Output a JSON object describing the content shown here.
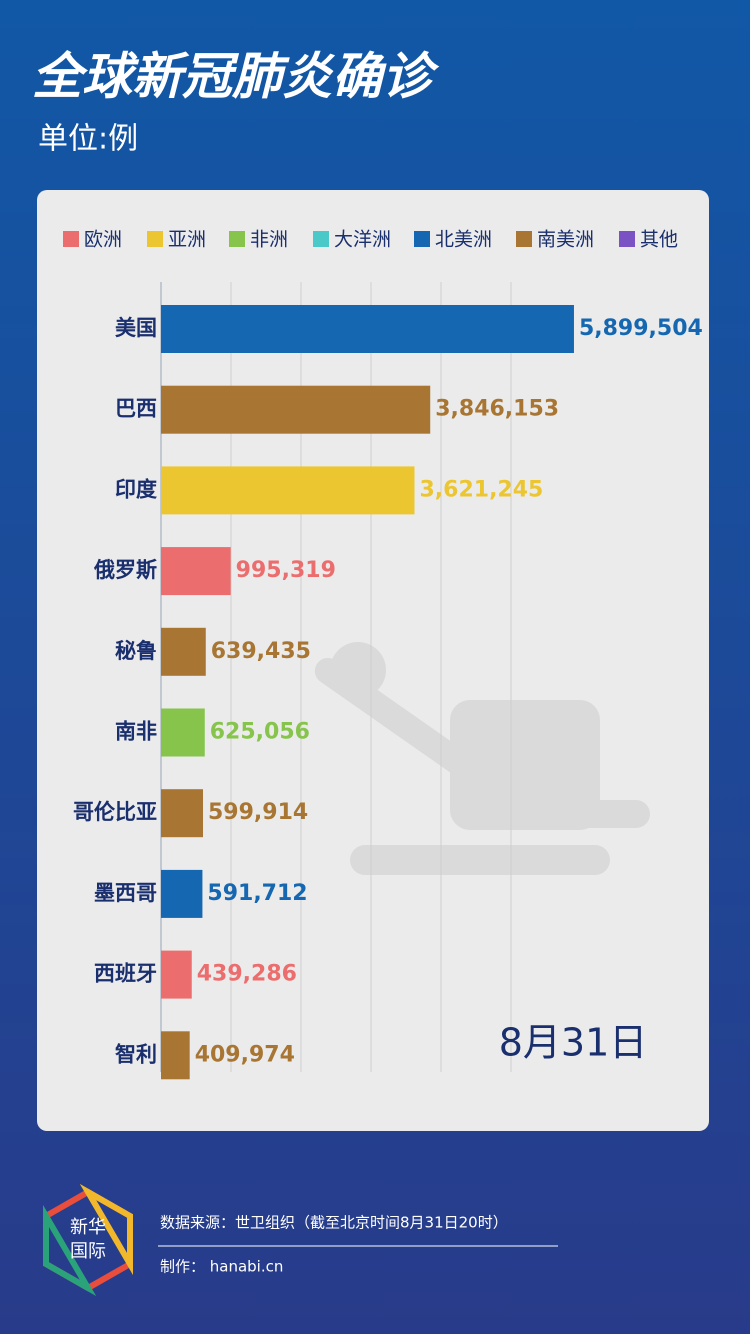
{
  "chart_data": {
    "type": "bar",
    "orientation": "horizontal",
    "title": "全球新冠肺炎确诊",
    "subtitle": "单位:例",
    "legend": [
      {
        "name": "欧洲",
        "color": "#ec6d6d"
      },
      {
        "name": "亚洲",
        "color": "#ecc631"
      },
      {
        "name": "非洲",
        "color": "#86c44b"
      },
      {
        "name": "大洋洲",
        "color": "#4bc8c8"
      },
      {
        "name": "北美洲",
        "color": "#1467b0"
      },
      {
        "name": "南美洲",
        "color": "#a87632"
      },
      {
        "name": "其他",
        "color": "#7b52c4"
      }
    ],
    "categories": [
      "美国",
      "巴西",
      "印度",
      "俄罗斯",
      "秘鲁",
      "南非",
      "哥伦比亚",
      "墨西哥",
      "西班牙",
      "智利"
    ],
    "values": [
      5899504,
      3846153,
      3621245,
      995319,
      639435,
      625056,
      599914,
      591712,
      439286,
      409974
    ],
    "value_labels": [
      "5,899,504",
      "3,846,153",
      "3,621,245",
      "995,319",
      "639,435",
      "625,056",
      "599,914",
      "591,712",
      "439,286",
      "409,974"
    ],
    "colors": [
      "#1467b0",
      "#a87632",
      "#ecc631",
      "#ec6d6d",
      "#a87632",
      "#86c44b",
      "#a87632",
      "#1467b0",
      "#ec6d6d",
      "#a87632"
    ],
    "xlim": [
      0,
      6000000
    ],
    "xticks": [
      0,
      1000000,
      2000000,
      3000000,
      4000000,
      5000000
    ],
    "grid": true,
    "annotation": "8月31日"
  },
  "footer": {
    "source": "数据来源：世卫组织（截至北京时间8月31日20时）",
    "credit": "制作： hanabi.cn",
    "logo_lines": [
      "新华",
      "国际"
    ]
  }
}
